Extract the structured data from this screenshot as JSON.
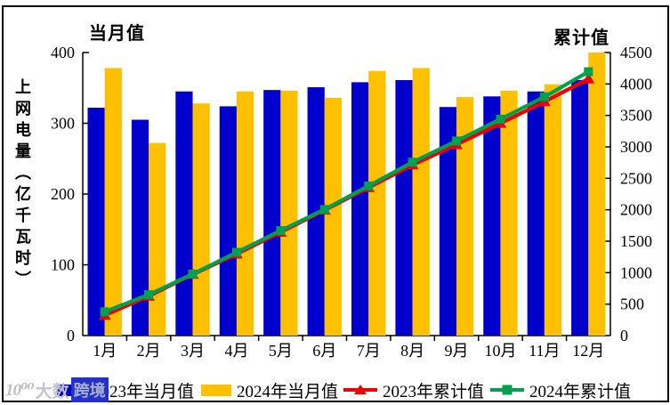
{
  "titles": {
    "monthly_axis_label": "当月值",
    "cumulative_axis_label": "累计值"
  },
  "left_axis": {
    "title": "上网电量（亿千瓦时）",
    "min": 0,
    "max": 400,
    "step": 100
  },
  "right_axis": {
    "min": 0,
    "max": 4500,
    "step": 500
  },
  "chart_data": {
    "type": "bar+line combo",
    "categories": [
      "1月",
      "2月",
      "3月",
      "4月",
      "5月",
      "6月",
      "7月",
      "8月",
      "9月",
      "10月",
      "11月",
      "12月"
    ],
    "series": [
      {
        "name": "2023年当月值",
        "type": "bar",
        "axis": "left",
        "color": "#0000CC",
        "values": [
          322,
          305,
          345,
          324,
          347,
          351,
          358,
          361,
          323,
          338,
          345,
          361
        ]
      },
      {
        "name": "2024年当月值",
        "type": "bar",
        "axis": "left",
        "color": "#FFC000",
        "values": [
          378,
          272,
          328,
          345,
          346,
          336,
          374,
          378,
          337,
          346,
          355,
          400
        ]
      },
      {
        "name": "2023年累计值",
        "type": "line",
        "axis": "right",
        "color": "#EE0000",
        "marker": "triangle",
        "values": [
          322,
          627,
          972,
          1296,
          1643,
          1994,
          2352,
          2713,
          3036,
          3374,
          3719,
          4080
        ]
      },
      {
        "name": "2024年累计值",
        "type": "line",
        "axis": "right",
        "color": "#00A14E",
        "marker": "square",
        "values": [
          378,
          650,
          978,
          1323,
          1669,
          2005,
          2379,
          2757,
          3094,
          3440,
          3795,
          4195
        ]
      }
    ],
    "ylabel_left": "上网电量（亿千瓦时）",
    "ylabel_right": "累计值",
    "ylim_left": [
      0,
      400
    ],
    "ylim_right": [
      0,
      4500
    ],
    "grid": false,
    "legend_position": "bottom"
  },
  "watermark": {
    "logo": "10⁰⁰",
    "text": "大数",
    "boxed_text": "跨境"
  }
}
